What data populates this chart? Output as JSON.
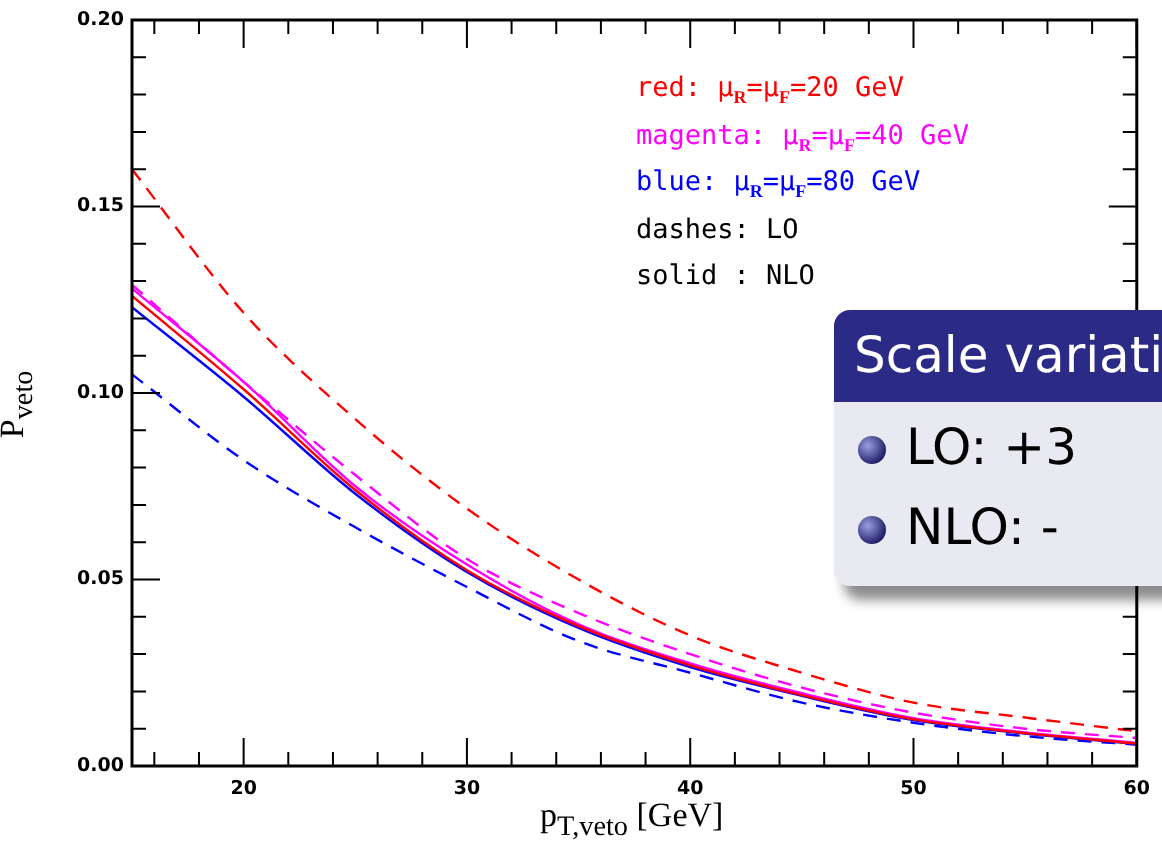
{
  "chart_data": {
    "type": "line",
    "xlabel": "p$_{T,veto}$  [GeV]",
    "ylabel": "P$_{veto}$",
    "x": [
      15,
      20,
      25,
      30,
      35,
      40,
      45,
      50,
      55,
      60
    ],
    "xlim": [
      15,
      60
    ],
    "xticks": [
      {
        "value": 16,
        "label": null
      },
      {
        "value": 18,
        "label": null
      },
      20,
      {
        "value": 22,
        "label": null
      },
      {
        "value": 24,
        "label": null
      },
      {
        "value": 26,
        "label": null
      },
      {
        "value": 28,
        "label": null
      },
      30,
      {
        "value": 32,
        "label": null
      },
      {
        "value": 34,
        "label": null
      },
      {
        "value": 36,
        "label": null
      },
      {
        "value": 38,
        "label": null
      },
      40,
      {
        "value": 42,
        "label": null
      },
      {
        "value": 44,
        "label": null
      },
      {
        "value": 46,
        "label": null
      },
      {
        "value": 48,
        "label": null
      },
      50,
      {
        "value": 52,
        "label": null
      },
      {
        "value": 54,
        "label": null
      },
      {
        "value": 56,
        "label": null
      },
      {
        "value": 58,
        "label": null
      },
      60
    ],
    "ylim": [
      0,
      0.2
    ],
    "yticks": [
      {
        "value": 0,
        "label": "0.00"
      },
      {
        "value": 0.01,
        "label": null
      },
      {
        "value": 0.02,
        "label": null
      },
      {
        "value": 0.03,
        "label": null
      },
      {
        "value": 0.04,
        "label": null
      },
      {
        "value": 0.05,
        "label": "0.05"
      },
      {
        "value": 0.06,
        "label": null
      },
      {
        "value": 0.07,
        "label": null
      },
      {
        "value": 0.08,
        "label": null
      },
      {
        "value": 0.09,
        "label": null
      },
      {
        "value": 0.1,
        "label": "0.10"
      },
      {
        "value": 0.11,
        "label": null
      },
      {
        "value": 0.12,
        "label": null
      },
      {
        "value": 0.13,
        "label": null
      },
      {
        "value": 0.14,
        "label": null
      },
      {
        "value": 0.15,
        "label": "0.15"
      },
      {
        "value": 0.16,
        "label": null
      },
      {
        "value": 0.17,
        "label": null
      },
      {
        "value": 0.18,
        "label": null
      },
      {
        "value": 0.19,
        "label": null
      },
      {
        "value": 0.2,
        "label": "0.20"
      }
    ],
    "series": [
      {
        "color": "#ff0000",
        "line_style": "dashed",
        "values": [
          0.16,
          0.1215,
          0.093,
          0.069,
          0.05,
          0.035,
          0.025,
          0.017,
          0.013,
          0.0093
        ]
      },
      {
        "color": "#ff0000",
        "line_style": "solid",
        "values": [
          0.126,
          0.101,
          0.074,
          0.0525,
          0.0375,
          0.027,
          0.019,
          0.0125,
          0.0088,
          0.006
        ]
      },
      {
        "color": "#ff00ff",
        "line_style": "dashed",
        "values": [
          0.129,
          0.103,
          0.078,
          0.0555,
          0.041,
          0.03,
          0.021,
          0.0143,
          0.01,
          0.0075
        ]
      },
      {
        "color": "#ff00ff",
        "line_style": "solid",
        "values": [
          0.128,
          0.103,
          0.075,
          0.054,
          0.038,
          0.0275,
          0.0195,
          0.0128,
          0.009,
          0.0062
        ]
      },
      {
        "color": "#0000ff",
        "line_style": "dashed",
        "values": [
          0.105,
          0.082,
          0.064,
          0.048,
          0.0335,
          0.025,
          0.017,
          0.0116,
          0.008,
          0.0057
        ]
      },
      {
        "color": "#0000ff",
        "line_style": "solid",
        "values": [
          0.123,
          0.099,
          0.073,
          0.052,
          0.037,
          0.0265,
          0.0188,
          0.0123,
          0.0087,
          0.0059
        ]
      }
    ],
    "legend": false,
    "grid": false,
    "marker": "none",
    "annotations": [
      "red: μ$_{R}$=μ$_{F}$=20 GeV",
      "magenta: μ$_{R}$=μ$_{F}$=40 GeV",
      "blue: μ$_{R}$=μ$_{F}$=80 GeV",
      "dashes: LO",
      "solid : NLO",
      "Scale variati",
      "LO: +3",
      "NLO: -"
    ]
  }
}
